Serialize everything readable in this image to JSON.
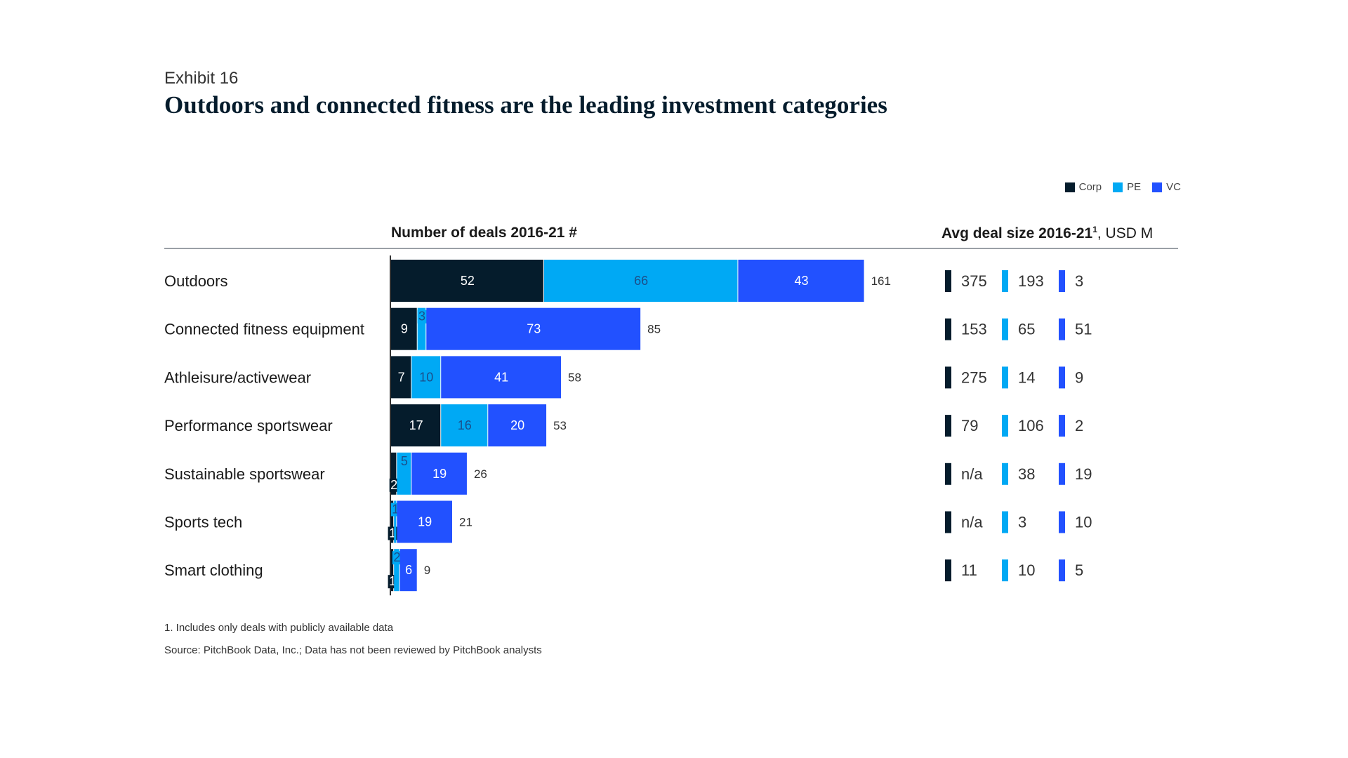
{
  "header": {
    "exhibit": "Exhibit 16",
    "title": "Outdoors and connected fitness are the leading investment categories"
  },
  "legend": [
    {
      "name": "Corp",
      "color": "#051c2c"
    },
    {
      "name": "PE",
      "color": "#00a9f4"
    },
    {
      "name": "VC",
      "color": "#2251ff"
    }
  ],
  "headers": {
    "deals": "Number of deals 2016-21 #",
    "avg_bold": "Avg deal size 2016-21",
    "avg_sup": "1",
    "avg_unit": ", USD M"
  },
  "chart_data": {
    "type": "bar",
    "orientation": "horizontal",
    "stacked": true,
    "categories": [
      "Outdoors",
      "Connected fitness equipment",
      "Athleisure/activewear",
      "Performance sportswear",
      "Sustainable sportswear",
      "Sports tech",
      "Smart clothing"
    ],
    "series": [
      {
        "name": "Corp",
        "color": "#051c2c",
        "values": [
          52,
          9,
          7,
          17,
          2,
          1,
          1
        ]
      },
      {
        "name": "PE",
        "color": "#00a9f4",
        "values": [
          66,
          3,
          10,
          16,
          5,
          1,
          2
        ]
      },
      {
        "name": "VC",
        "color": "#2251ff",
        "values": [
          43,
          73,
          41,
          20,
          19,
          19,
          6
        ]
      }
    ],
    "totals": [
      161,
      85,
      58,
      53,
      26,
      21,
      9
    ],
    "avg_deal_size": [
      {
        "Corp": "375",
        "PE": "193",
        "VC": "3"
      },
      {
        "Corp": "153",
        "PE": "65",
        "VC": "51"
      },
      {
        "Corp": "275",
        "PE": "14",
        "VC": "9"
      },
      {
        "Corp": "79",
        "PE": "106",
        "VC": "2"
      },
      {
        "Corp": "n/a",
        "PE": "38",
        "VC": "19"
      },
      {
        "Corp": "n/a",
        "PE": "3",
        "VC": "10"
      },
      {
        "Corp": "11",
        "PE": "10",
        "VC": "5"
      }
    ]
  },
  "footnotes": {
    "note": "1.  Includes only deals with publicly available data",
    "source": "Source: PitchBook Data, Inc.; Data has not been reviewed by PitchBook analysts"
  }
}
